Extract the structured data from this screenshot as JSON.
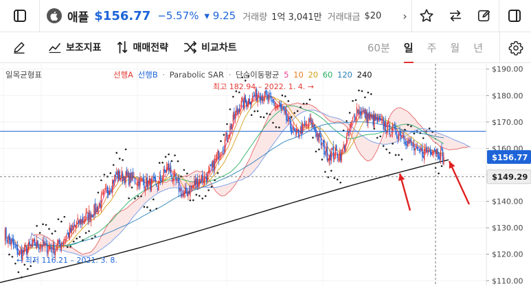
{
  "header": {
    "symbol_name": "애플",
    "price": "$156.77",
    "change_pct": "−5.57%",
    "change_abs": "▾ 9.25",
    "volume_label": "거래량",
    "volume_value": "1억 3,041만",
    "amount_label": "거래대금",
    "amount_value": "$20",
    "scroll_icon": "chevron-right-icon"
  },
  "toolbar": {
    "draw_icon": "pen-icon",
    "indicator_label": "보조지표",
    "strategy_label": "매매전략",
    "compare_label": "비교차트",
    "timeframes": [
      "60분",
      "일",
      "주",
      "월",
      "년"
    ],
    "active_timeframe": "일"
  },
  "legend": {
    "ichimoku": "일목균형표",
    "spanA": "선행A",
    "spanB": "선행B",
    "sar": "Parabolic SAR",
    "sep": "·",
    "ma_label": "단순이동평균",
    "ma_periods": [
      "5",
      "10",
      "20",
      "60",
      "120",
      "240"
    ],
    "ma_colors": [
      "#e84393",
      "#e67e22",
      "#d4a017",
      "#27ae60",
      "#2980b9",
      "#111111"
    ]
  },
  "colors": {
    "up": "#e53935",
    "down": "#1e64d8",
    "cloud_fill": "#fbe3e3",
    "accent_red": "#e02020"
  },
  "chart_data": {
    "type": "candlestick",
    "y_axis_ticks": [
      "$190.00",
      "$180.00",
      "$170.00",
      "$160.00",
      "$150.00",
      "$140.00",
      "$130.00",
      "$120.00",
      "$110.00"
    ],
    "ylim": [
      108,
      192
    ],
    "current_price_label": "$156.77",
    "crosshair_price_label": "$149.29",
    "annotations": {
      "high": "최고 182.94 – 2022. 1. 4.",
      "low": "최저 116.21 – 2021. 3. 8."
    },
    "close_path_days": [
      0,
      15,
      30,
      50,
      70,
      90,
      110,
      130,
      150,
      160,
      175,
      190,
      200,
      215,
      230,
      250,
      270,
      285,
      300,
      315,
      330,
      345,
      360,
      375,
      390,
      405,
      420,
      430
    ],
    "close_path_values": [
      128,
      120,
      124,
      122,
      131,
      137,
      150,
      148,
      146,
      153,
      142,
      148,
      150,
      162,
      176,
      181,
      175,
      165,
      170,
      158,
      158,
      175,
      171,
      168,
      165,
      158,
      160,
      156.8
    ]
  }
}
